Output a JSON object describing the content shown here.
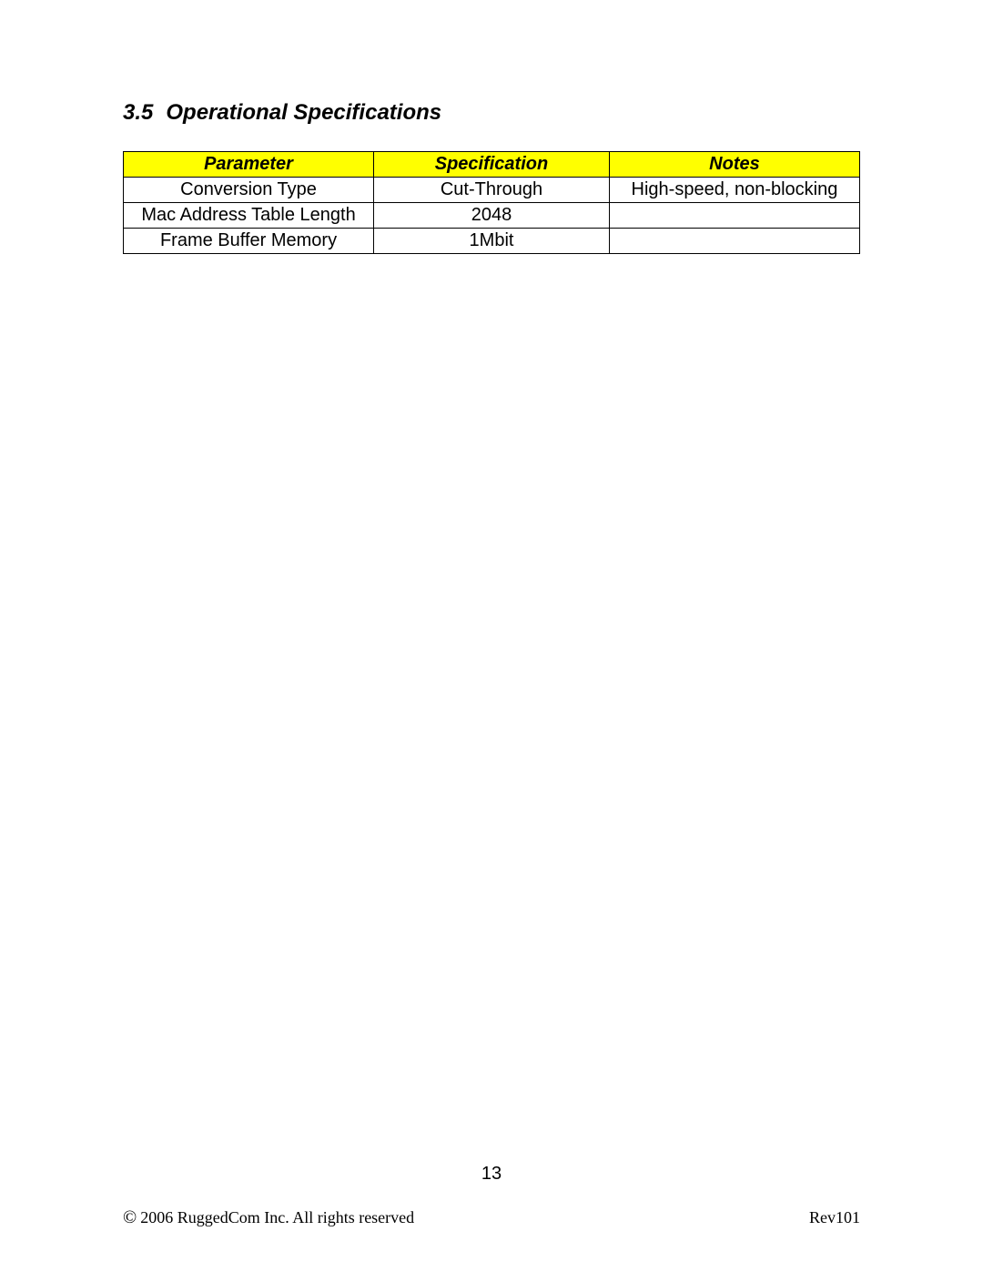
{
  "heading": {
    "number": "3.5",
    "title": "Operational Specifications"
  },
  "table": {
    "type": "table",
    "header_bg": "#ffff00",
    "border_color": "#000000",
    "columns": [
      "Parameter",
      "Specification",
      "Notes"
    ],
    "rows": [
      [
        "Conversion Type",
        "Cut-Through",
        "High-speed, non-blocking"
      ],
      [
        "Mac Address Table Length",
        "2048",
        ""
      ],
      [
        "Frame Buffer Memory",
        "1Mbit",
        ""
      ]
    ]
  },
  "page_number": "13",
  "footer": {
    "copyright_symbol": "©",
    "copyright_text": "2006 RuggedCom Inc.  All rights reserved",
    "revision": "Rev101"
  }
}
